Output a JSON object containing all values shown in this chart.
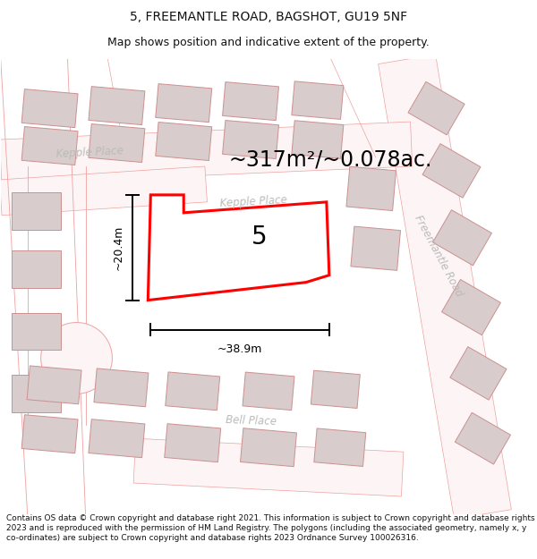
{
  "title": "5, FREEMANTLE ROAD, BAGSHOT, GU19 5NF",
  "subtitle": "Map shows position and indicative extent of the property.",
  "footer": "Contains OS data © Crown copyright and database right 2021. This information is subject to Crown copyright and database rights 2023 and is reproduced with the permission of HM Land Registry. The polygons (including the associated geometry, namely x, y co-ordinates) are subject to Crown copyright and database rights 2023 Ordnance Survey 100026316.",
  "area_text": "~317m²/~0.078ac.",
  "label_number": "5",
  "dim_width": "~38.9m",
  "dim_height": "~20.4m",
  "bg_color": "#ffffff",
  "highlight_color": "#ff0000",
  "bld_fill": "#d8cccc",
  "bld_edge": "#cc9090",
  "road_line": "#f0a0a0",
  "road_fill": "#fdf5f5",
  "label_color": "#bbbbbb",
  "title_fontsize": 10,
  "subtitle_fontsize": 9,
  "area_fontsize": 17,
  "label_fontsize": 20,
  "footer_fontsize": 6.5,
  "kepple_place_label": "Kepple Place",
  "bell_place_label": "Bell Place",
  "freemantle_road_label": "Freemantle Road"
}
